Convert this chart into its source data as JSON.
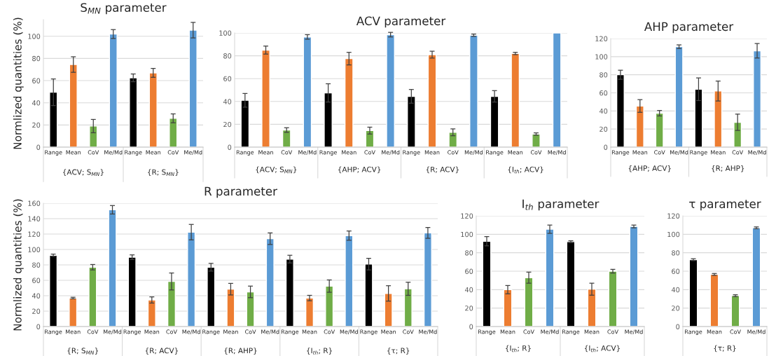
{
  "chart_data": [
    {
      "type": "bar",
      "title": "S$_{MN}$ parameter",
      "ylabel": "Normlized quantities (%)",
      "categories": [
        "Range",
        "Mean",
        "CoV",
        "Me/Md",
        "Range",
        "Mean",
        "CoV",
        "Me/Md"
      ],
      "colors": [
        "#000000",
        "#ed7d31",
        "#70ad47",
        "#5b9bd5",
        "#000000",
        "#ed7d31",
        "#70ad47",
        "#5b9bd5"
      ],
      "values": [
        49.5,
        74.5,
        19,
        102,
        62.5,
        67,
        26,
        105.5
      ],
      "errors": [
        12,
        7,
        6,
        4,
        3.5,
        4,
        4,
        7
      ],
      "annotations": [
        "{ACV; S$_{MN}$}",
        "{R; S$_{MN}$}"
      ],
      "ylim": [
        0,
        115
      ],
      "yticks": [
        0,
        20,
        40,
        60,
        80,
        100
      ],
      "grid": "y"
    },
    {
      "type": "bar",
      "title": "ACV parameter",
      "categories": [
        "Range",
        "Mean",
        "CoV",
        "Me/Md",
        "Range",
        "Mean",
        "CoV",
        "Me/Md",
        "Range",
        "Mean",
        "CoV",
        "Me/Md",
        "Range",
        "Mean",
        "CoV",
        "Me/Md"
      ],
      "colors": [
        "#000000",
        "#ed7d31",
        "#70ad47",
        "#5b9bd5",
        "#000000",
        "#ed7d31",
        "#70ad47",
        "#5b9bd5",
        "#000000",
        "#ed7d31",
        "#70ad47",
        "#5b9bd5",
        "#000000",
        "#ed7d31",
        "#70ad47",
        "#5b9bd5"
      ],
      "values": [
        41,
        85,
        15,
        96.5,
        47.5,
        77.5,
        14.5,
        98.5,
        44.5,
        81,
        13,
        98,
        44.5,
        82,
        11.5,
        100
      ],
      "errors": [
        6,
        3.5,
        2,
        2,
        8,
        5.5,
        3,
        2,
        6,
        3,
        3,
        1,
        5,
        1,
        1,
        null
      ],
      "annotations": [
        "{ACV; S$_{MN}$}",
        "{AHP; ACV}",
        "{R; ACV}",
        "{I$_{th}$; ACV}"
      ],
      "ylim": [
        0,
        100
      ],
      "yticks": [
        0,
        20,
        40,
        60,
        80,
        100
      ],
      "grid": "y"
    },
    {
      "type": "bar",
      "title": "AHP parameter",
      "categories": [
        "Range",
        "Mean",
        "CoV",
        "Me/Md",
        "Range",
        "Mean",
        "CoV",
        "Me/Md"
      ],
      "colors": [
        "#000000",
        "#ed7d31",
        "#70ad47",
        "#5b9bd5",
        "#000000",
        "#ed7d31",
        "#70ad47",
        "#5b9bd5"
      ],
      "values": [
        80,
        45.5,
        37.5,
        111,
        64,
        62,
        27.5,
        106.5
      ],
      "errors": [
        5,
        7,
        3,
        2,
        12.5,
        11,
        9,
        8
      ],
      "annotations": [
        "{AHP; ACV}",
        "{R; AHP}"
      ],
      "ylim": [
        0,
        120
      ],
      "yticks": [
        0,
        20,
        40,
        60,
        80,
        100,
        120
      ],
      "grid": "y"
    },
    {
      "type": "bar",
      "title": "R parameter",
      "ylabel": "Normlized quantities (%)",
      "categories": [
        "Range",
        "Mean",
        "CoV",
        "Me/Md",
        "Range",
        "Mean",
        "CoV",
        "Me/Md",
        "Range",
        "Mean",
        "CoV",
        "Me/Md",
        "Range",
        "Mean",
        "CoV",
        "Me/Md",
        "Range",
        "Mean",
        "CoV",
        "Me/Md"
      ],
      "colors": [
        "#000000",
        "#ed7d31",
        "#70ad47",
        "#5b9bd5",
        "#000000",
        "#ed7d31",
        "#70ad47",
        "#5b9bd5",
        "#000000",
        "#ed7d31",
        "#70ad47",
        "#5b9bd5",
        "#000000",
        "#ed7d31",
        "#70ad47",
        "#5b9bd5",
        "#000000",
        "#ed7d31",
        "#70ad47",
        "#5b9bd5"
      ],
      "values": [
        92.5,
        37,
        77,
        151.5,
        90,
        34.5,
        58.5,
        122.5,
        77,
        48.5,
        45,
        114,
        87.5,
        37,
        52.5,
        118,
        81,
        43,
        49,
        121.5
      ],
      "errors": [
        1.5,
        1,
        3.5,
        5.5,
        3,
        4,
        11,
        10,
        5,
        7.5,
        7.5,
        7.5,
        5,
        3.5,
        8,
        6,
        7.5,
        10,
        8.5,
        7
      ],
      "annotations": [
        "{R; S$_{MN}$}",
        "{R; ACV}",
        "{R; AHP}",
        "{I$_{th}$; R}",
        "{τ; R}"
      ],
      "ylim": [
        0,
        160
      ],
      "yticks": [
        0,
        20,
        40,
        60,
        80,
        100,
        120,
        140,
        160
      ],
      "grid": "y"
    },
    {
      "type": "bar",
      "title": "I$_{th}$ parameter",
      "categories": [
        "Range",
        "Mean",
        "CoV",
        "Me/Md",
        "Range",
        "Mean",
        "CoV",
        "Me/Md"
      ],
      "colors": [
        "#000000",
        "#ed7d31",
        "#70ad47",
        "#5b9bd5",
        "#000000",
        "#ed7d31",
        "#70ad47",
        "#5b9bd5"
      ],
      "values": [
        92.5,
        40,
        53,
        105.5,
        92,
        40.5,
        60,
        108.5
      ],
      "errors": [
        5,
        4.5,
        6,
        4.5,
        1,
        6.5,
        2,
        1.5
      ],
      "annotations": [
        "{I$_{th}$; R}",
        "{I$_{th}$; ACV}"
      ],
      "ylim": [
        0,
        120
      ],
      "yticks": [
        0,
        20,
        40,
        60,
        80,
        100,
        120
      ],
      "grid": "y"
    },
    {
      "type": "bar",
      "title": "τ parameter",
      "categories": [
        "Range",
        "Mean",
        "CoV",
        "Me/Md"
      ],
      "colors": [
        "#000000",
        "#ed7d31",
        "#70ad47",
        "#5b9bd5"
      ],
      "values": [
        72.5,
        56.5,
        33.5,
        107
      ],
      "errors": [
        1,
        1,
        1,
        1
      ],
      "annotations": [
        "{τ; R}"
      ],
      "ylim": [
        0,
        120
      ],
      "yticks": [
        0,
        20,
        40,
        60,
        80,
        100,
        120
      ],
      "grid": "y"
    }
  ]
}
